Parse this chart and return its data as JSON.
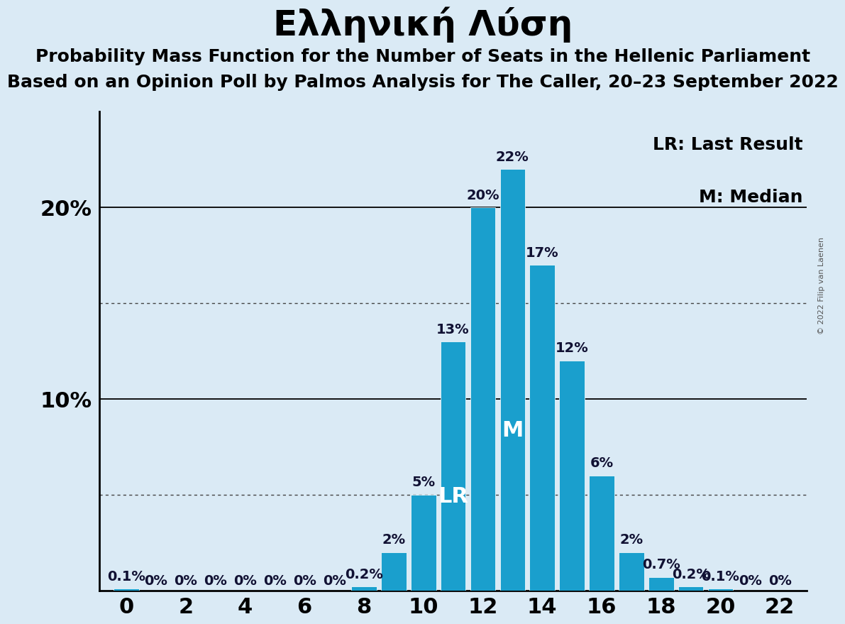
{
  "title": "Ελληνική Λύση",
  "subtitle1": "Probability Mass Function for the Number of Seats in the Hellenic Parliament",
  "subtitle2": "Based on an Opinion Poll by Palmos Analysis for The Caller, 20–23 September 2022",
  "copyright": "© 2022 Filip van Laenen",
  "legend1": "LR: Last Result",
  "legend2": "M: Median",
  "seats": [
    0,
    1,
    2,
    3,
    4,
    5,
    6,
    7,
    8,
    9,
    10,
    11,
    12,
    13,
    14,
    15,
    16,
    17,
    18,
    19,
    20,
    21,
    22
  ],
  "probabilities": [
    0.1,
    0.0,
    0.0,
    0.0,
    0.0,
    0.0,
    0.0,
    0.0,
    0.2,
    2.0,
    5.0,
    13.0,
    20.0,
    22.0,
    17.0,
    12.0,
    6.0,
    2.0,
    0.7,
    0.2,
    0.1,
    0.0,
    0.0
  ],
  "labels": [
    "0.1%",
    "0%",
    "0%",
    "0%",
    "0%",
    "0%",
    "0%",
    "0%",
    "0.2%",
    "2%",
    "5%",
    "13%",
    "20%",
    "22%",
    "17%",
    "12%",
    "6%",
    "2%",
    "0.7%",
    "0.2%",
    "0.1%",
    "0%",
    "0%"
  ],
  "bar_color": "#1a9fcd",
  "background_color": "#daeaf5",
  "last_result": 11,
  "median": 13,
  "ylim": [
    0,
    25
  ],
  "solid_gridlines": [
    10,
    20
  ],
  "dotted_gridlines": [
    5,
    15
  ],
  "title_fontsize": 36,
  "subtitle_fontsize": 18,
  "bar_label_fontsize": 14,
  "axis_tick_fontsize": 22,
  "legend_fontsize": 18,
  "lr_m_fontsize": 22,
  "copyright_fontsize": 8
}
